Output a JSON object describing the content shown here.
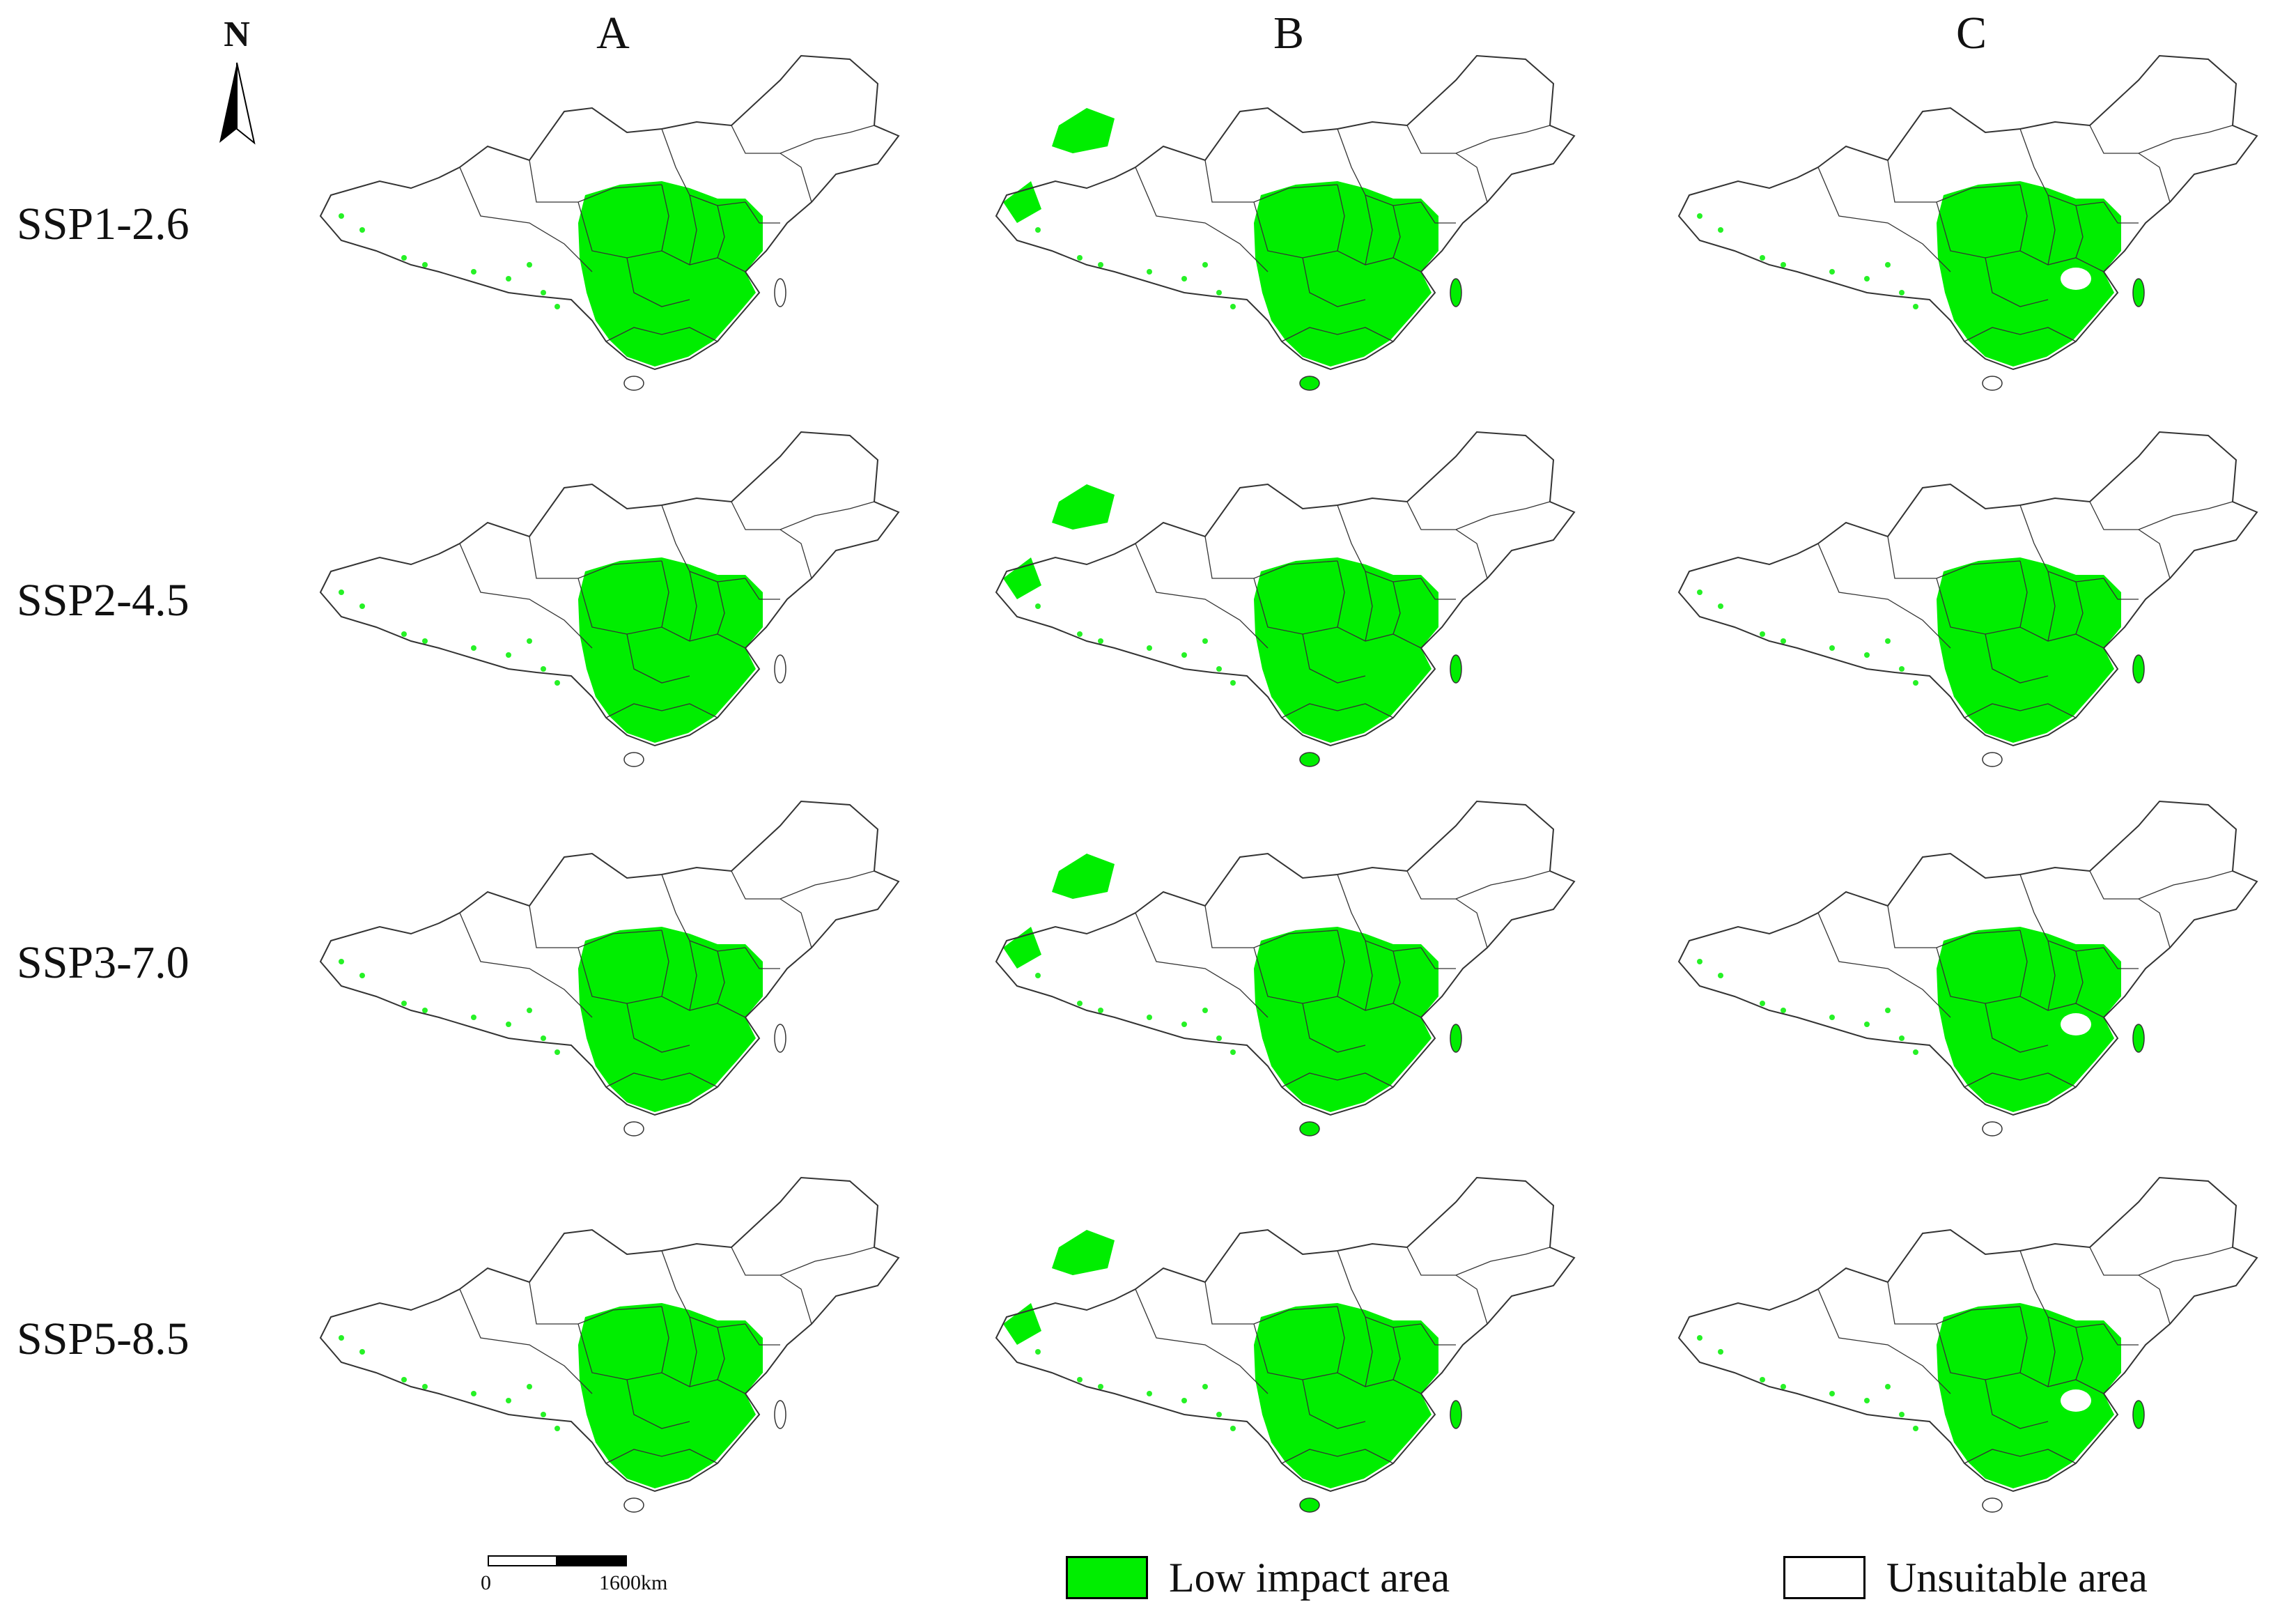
{
  "figure": {
    "north_label": "N",
    "column_labels": [
      "A",
      "B",
      "C"
    ],
    "row_labels": [
      "SSP1-2.6",
      "SSP2-4.5",
      "SSP3-7.0",
      "SSP5-8.5"
    ]
  },
  "scale_bar": {
    "start_label": "0",
    "end_label": "1600km"
  },
  "legend": {
    "items": [
      {
        "label": "Low impact area",
        "color": "#00ee00"
      },
      {
        "label": "Unsuitable area",
        "color": "#ffffff"
      }
    ]
  },
  "map_style": {
    "suitable_color": "#00ee00",
    "outline_color": "#333333",
    "background_color": "#ffffff"
  },
  "panels": [
    {
      "row": "SSP1-2.6",
      "column": "A",
      "northwest_patch": false,
      "southeast_gap": false
    },
    {
      "row": "SSP1-2.6",
      "column": "B",
      "northwest_patch": true,
      "southeast_gap": false
    },
    {
      "row": "SSP1-2.6",
      "column": "C",
      "northwest_patch": false,
      "southeast_gap": true
    },
    {
      "row": "SSP2-4.5",
      "column": "A",
      "northwest_patch": false,
      "southeast_gap": false
    },
    {
      "row": "SSP2-4.5",
      "column": "B",
      "northwest_patch": true,
      "southeast_gap": false
    },
    {
      "row": "SSP2-4.5",
      "column": "C",
      "northwest_patch": false,
      "southeast_gap": false
    },
    {
      "row": "SSP3-7.0",
      "column": "A",
      "northwest_patch": false,
      "southeast_gap": false
    },
    {
      "row": "SSP3-7.0",
      "column": "B",
      "northwest_patch": true,
      "southeast_gap": false
    },
    {
      "row": "SSP3-7.0",
      "column": "C",
      "northwest_patch": false,
      "southeast_gap": true
    },
    {
      "row": "SSP5-8.5",
      "column": "A",
      "northwest_patch": false,
      "southeast_gap": false
    },
    {
      "row": "SSP5-8.5",
      "column": "B",
      "northwest_patch": true,
      "southeast_gap": false
    },
    {
      "row": "SSP5-8.5",
      "column": "C",
      "northwest_patch": false,
      "southeast_gap": true
    }
  ]
}
